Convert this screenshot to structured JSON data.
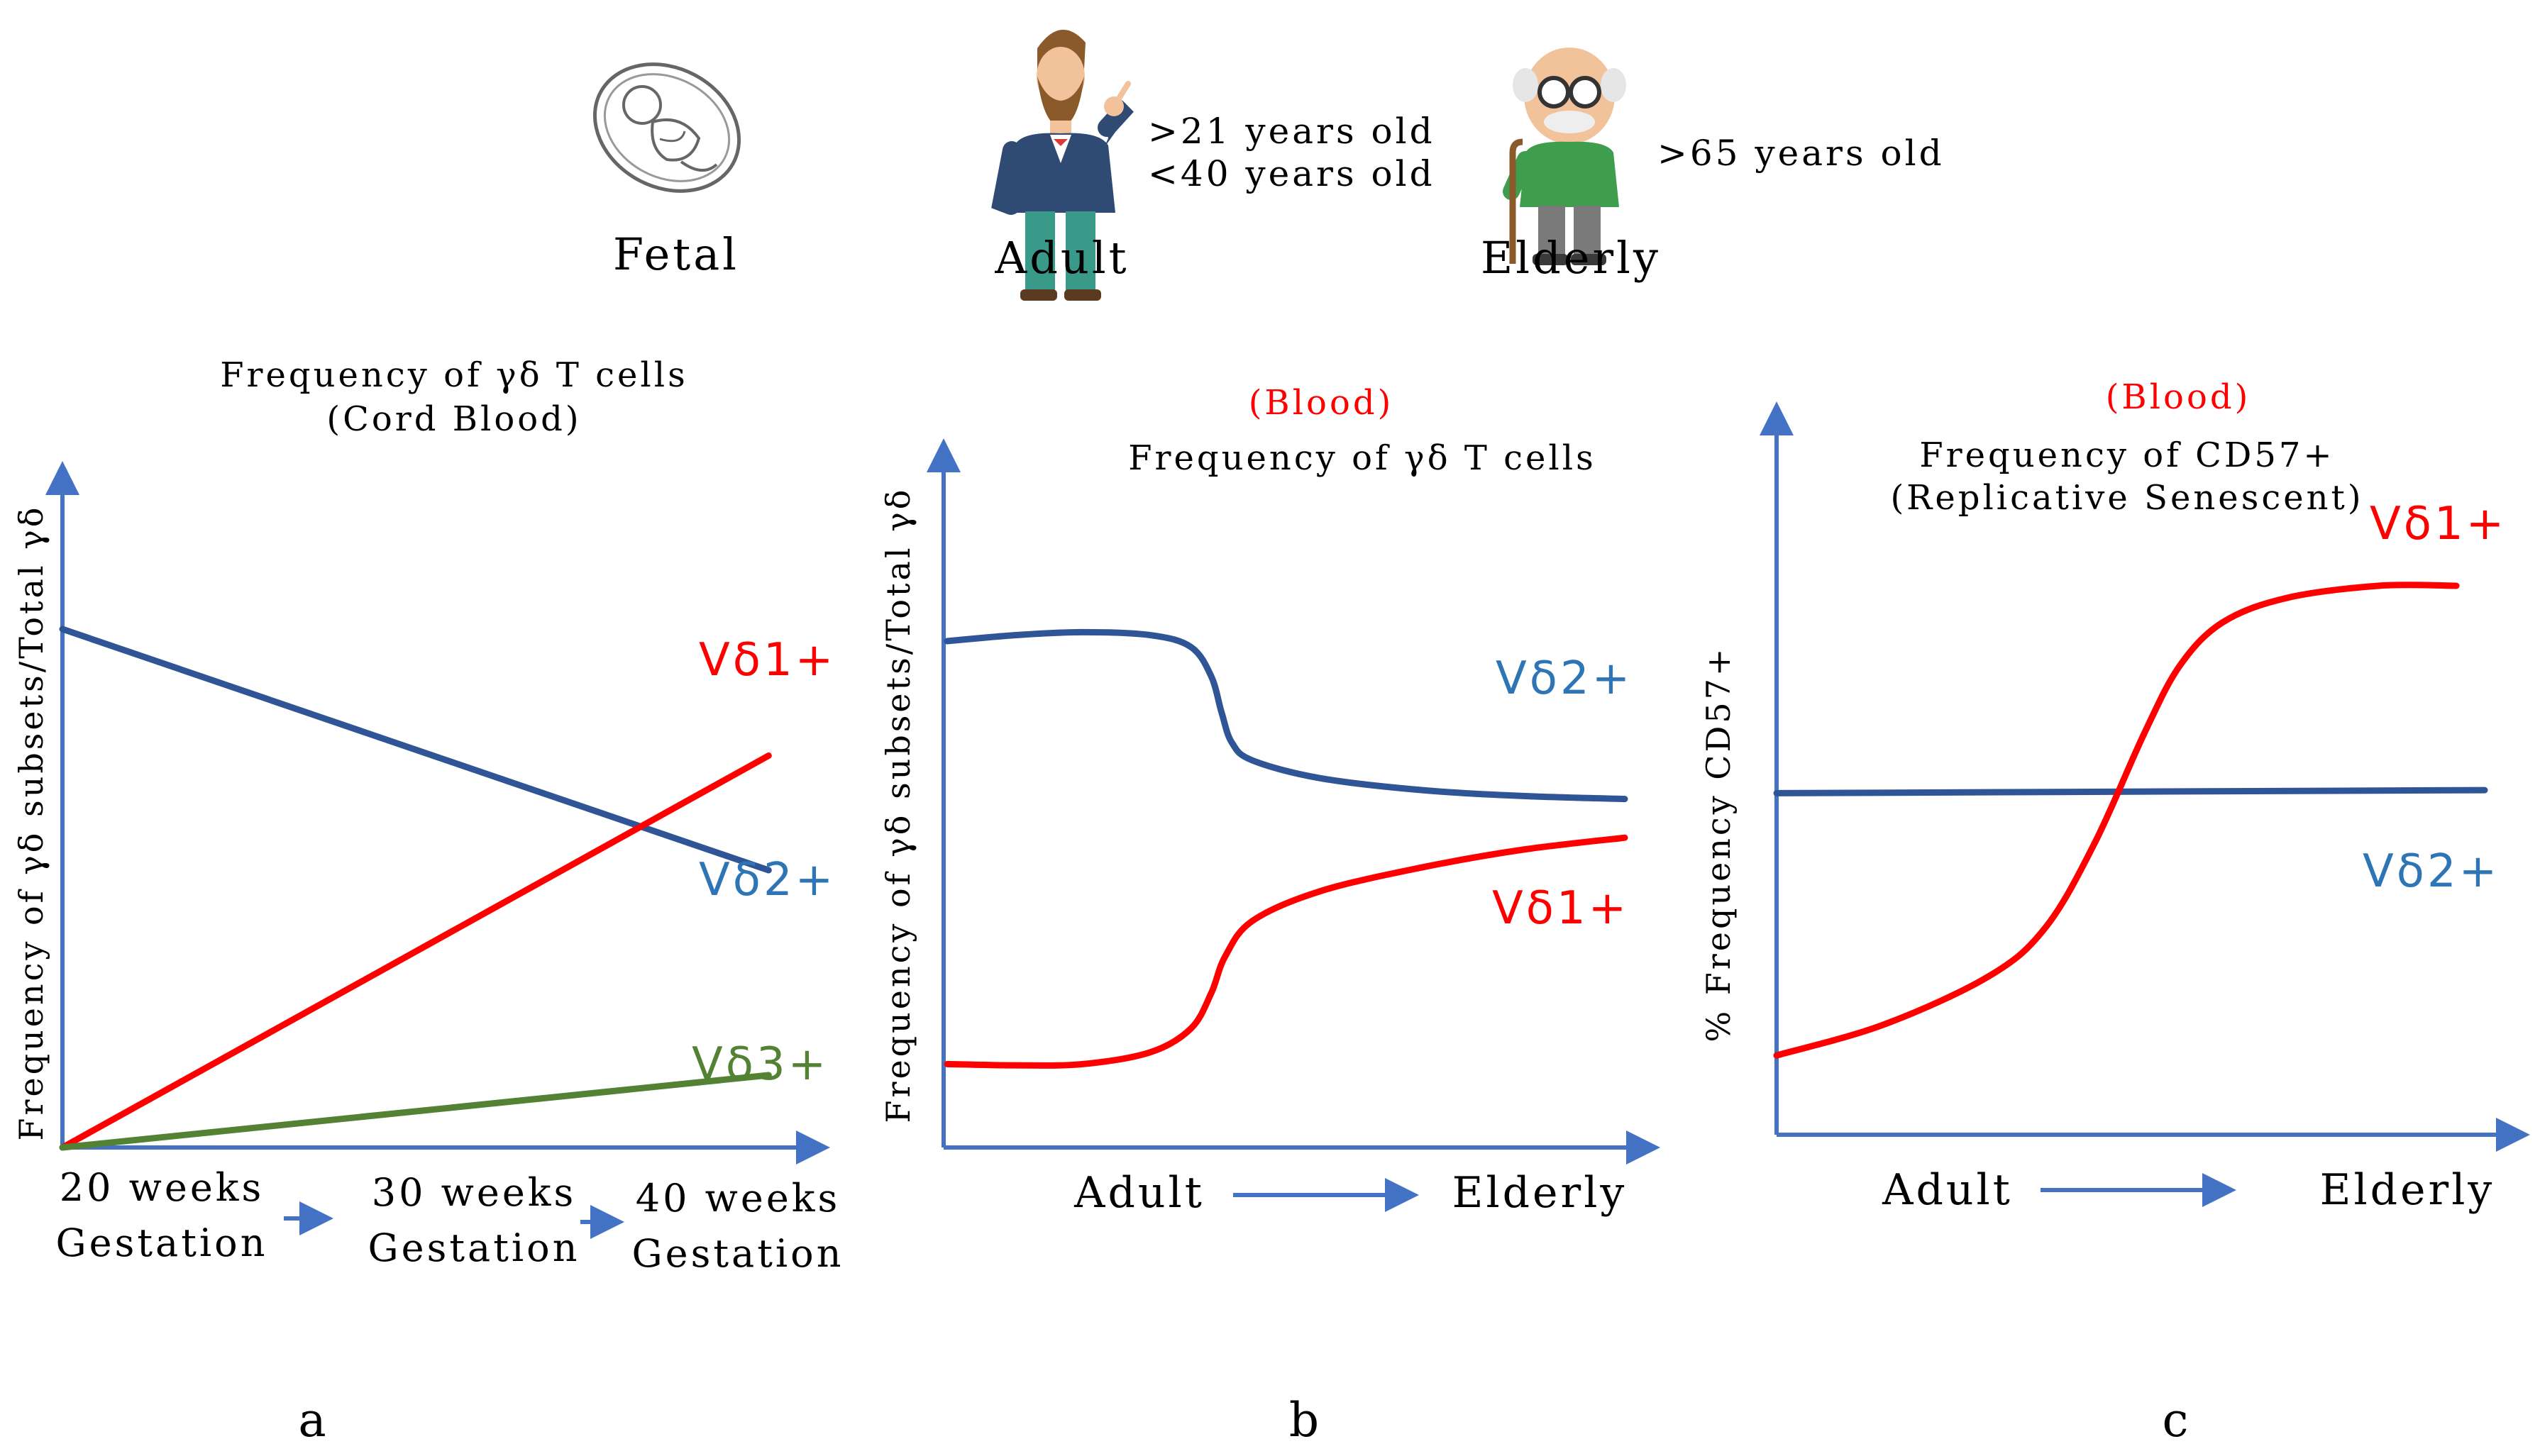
{
  "header": {
    "fetal": {
      "label": "Fetal"
    },
    "adult": {
      "label": "Adult",
      "age_line1": ">21 years old",
      "age_line2": "<40 years old"
    },
    "elderly": {
      "label": "Elderly",
      "age_line1": ">65 years old"
    }
  },
  "panel_labels": {
    "a": "a",
    "b": "b",
    "c": "c"
  },
  "colors": {
    "axis": "#4472c4",
    "vd1": "#ff0000",
    "vd2": "#2f5597",
    "vd2_label": "#2e75b6",
    "vd3": "#548235",
    "red_text": "#ff0000"
  },
  "chart_data": [
    {
      "id": "a",
      "type": "line",
      "title": "Frequency of γδ T cells",
      "subtitle": "(Cord Blood)",
      "ylabel": "Frequency of γδ subsets/Total γδ",
      "categories": [
        "20 weeks Gestation",
        "30 weeks Gestation",
        "40 weeks Gestation"
      ],
      "category_lines": [
        [
          "20 weeks",
          "Gestation"
        ],
        [
          "30 weeks",
          "Gestation"
        ],
        [
          "40 weeks",
          "Gestation"
        ]
      ],
      "x": [
        20,
        40
      ],
      "xlim": [
        20,
        41.5
      ],
      "ylim": [
        0,
        100
      ],
      "series": [
        {
          "name": "Vδ2+",
          "points": [
            [
              20,
              86
            ],
            [
              40,
              46
            ]
          ]
        },
        {
          "name": "Vδ1+",
          "points": [
            [
              20,
              0
            ],
            [
              40,
              65
            ]
          ]
        },
        {
          "name": "Vδ3+",
          "points": [
            [
              20,
              0
            ],
            [
              40,
              12
            ]
          ]
        }
      ]
    },
    {
      "id": "b",
      "type": "line",
      "context": "(Blood)",
      "title": "Frequency of γδ T cells",
      "ylabel": "Frequency of γδ subsets/Total γδ",
      "xlabel_left": "Adult",
      "xlabel_right": "Elderly",
      "xlim": [
        0,
        100
      ],
      "ylim": [
        0,
        100
      ],
      "series": [
        {
          "name": "Vδ2+",
          "points": [
            [
              0,
              85
            ],
            [
              10,
              86
            ],
            [
              20,
              86.5
            ],
            [
              30,
              86
            ],
            [
              36,
              84
            ],
            [
              39,
              79
            ],
            [
              40.5,
              73
            ],
            [
              42,
              68
            ],
            [
              45,
              65
            ],
            [
              55,
              62
            ],
            [
              70,
              60
            ],
            [
              85,
              59
            ],
            [
              100,
              58.5
            ]
          ]
        },
        {
          "name": "Vδ1+",
          "points": [
            [
              0,
              14
            ],
            [
              10,
              13.8
            ],
            [
              20,
              14
            ],
            [
              30,
              16
            ],
            [
              36,
              20
            ],
            [
              39,
              26
            ],
            [
              41,
              32
            ],
            [
              45,
              38
            ],
            [
              55,
              43
            ],
            [
              70,
              47
            ],
            [
              85,
              50
            ],
            [
              100,
              52
            ]
          ]
        }
      ]
    },
    {
      "id": "c",
      "type": "line",
      "context": "(Blood)",
      "title": "Frequency of CD57+",
      "subtitle": "(Replicative Senescent)",
      "ylabel": "% Frequency CD57+",
      "xlabel_left": "Adult",
      "xlabel_right": "Elderly",
      "xlim": [
        0,
        100
      ],
      "ylim": [
        0,
        100
      ],
      "series": [
        {
          "name": "Vδ2+",
          "points": [
            [
              0,
              56
            ],
            [
              100,
              56.5
            ]
          ]
        },
        {
          "name": "Vδ1+",
          "points": [
            [
              0,
              13
            ],
            [
              15,
              18
            ],
            [
              30,
              26
            ],
            [
              38,
              34
            ],
            [
              45,
              48
            ],
            [
              52,
              66
            ],
            [
              57,
              77
            ],
            [
              63,
              84
            ],
            [
              72,
              88
            ],
            [
              85,
              90
            ],
            [
              96,
              90
            ]
          ]
        }
      ]
    }
  ]
}
